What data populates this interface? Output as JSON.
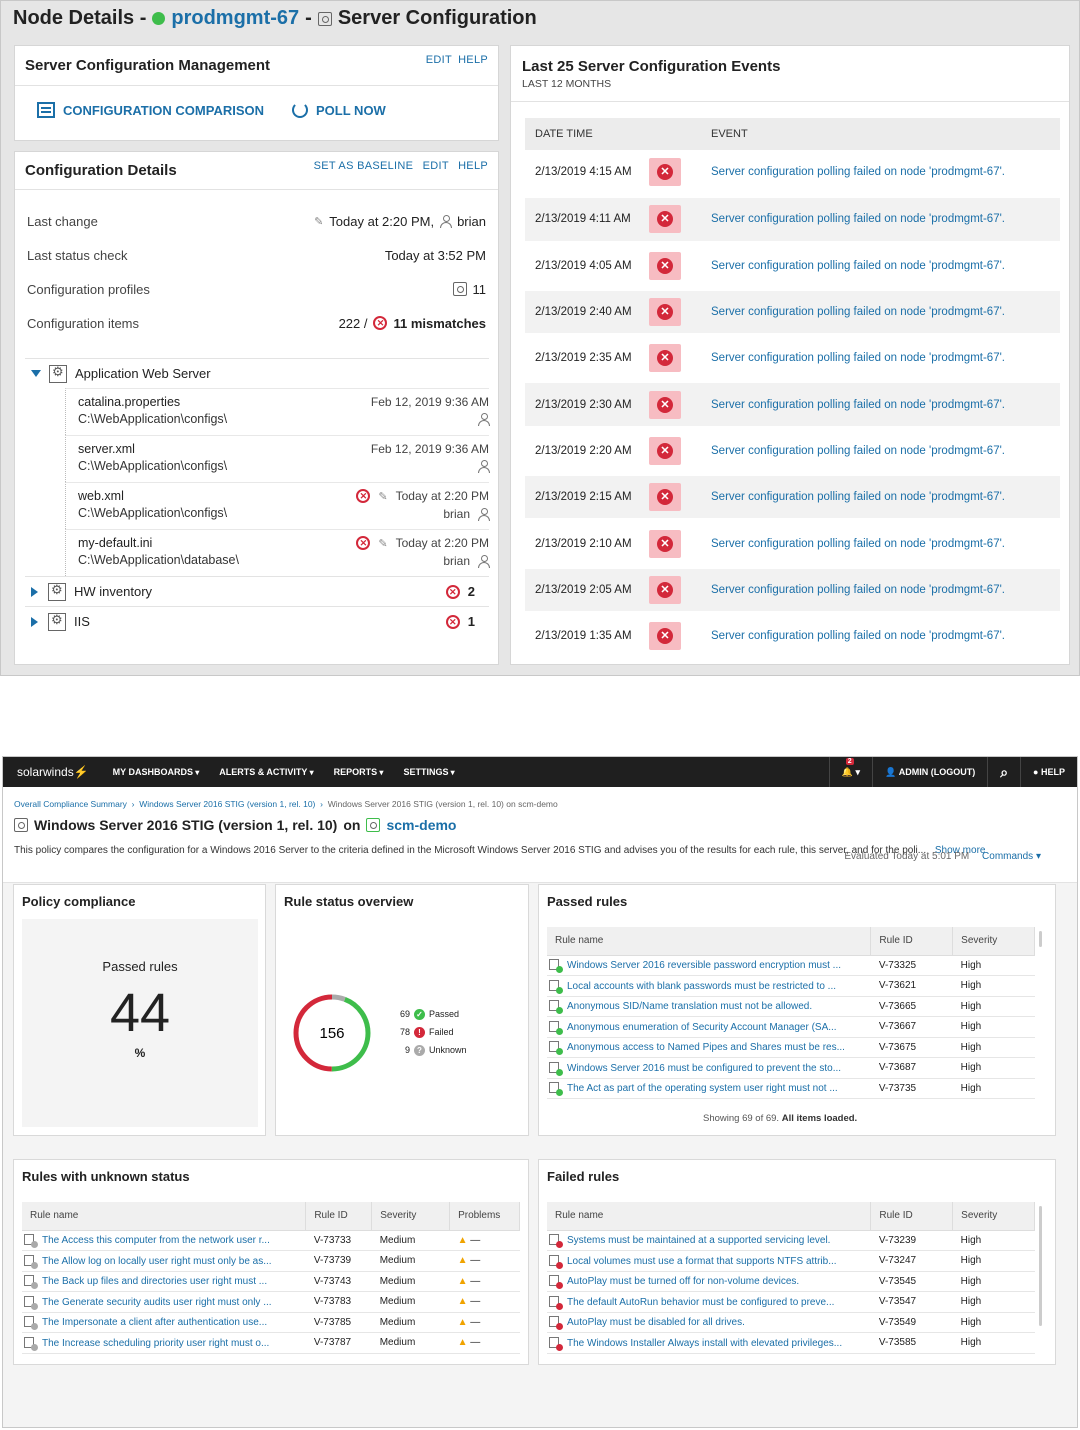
{
  "top": {
    "title_prefix": "Node Details -",
    "node_name": "prodmgmt-67",
    "title_suffix": "Server Configuration",
    "scm": {
      "title": "Server Configuration Management",
      "edit": "EDIT",
      "help": "HELP",
      "comparison": "CONFIGURATION COMPARISON",
      "poll": "POLL NOW"
    },
    "details": {
      "title": "Configuration Details",
      "set_baseline": "SET AS BASELINE",
      "edit": "EDIT",
      "help": "HELP",
      "last_change_label": "Last change",
      "last_change_value": "Today at 2:20 PM,",
      "last_change_user": "brian",
      "status_check_label": "Last status check",
      "status_check_value": "Today at 3:52 PM",
      "profiles_label": "Configuration profiles",
      "profiles_value": "11",
      "items_label": "Configuration items",
      "items_count": "222 /",
      "items_mismatch": "11 mismatches",
      "group_web": "Application Web Server",
      "files": [
        {
          "name": "catalina.properties",
          "path": "C:\\WebApplication\\configs\\",
          "date": "Feb 12, 2019 9:36 AM",
          "user": ""
        },
        {
          "name": "server.xml",
          "path": "C:\\WebApplication\\configs\\",
          "date": "Feb 12, 2019 9:36 AM",
          "user": ""
        },
        {
          "name": "web.xml",
          "path": "C:\\WebApplication\\configs\\",
          "date": "Today at 2:20 PM",
          "user": "brian"
        },
        {
          "name": "my-default.ini",
          "path": "C:\\WebApplication\\database\\",
          "date": "Today at 2:20 PM",
          "user": "brian"
        }
      ],
      "group_hw": "HW inventory",
      "group_hw_count": "2",
      "group_iis": "IIS",
      "group_iis_count": "1"
    },
    "events": {
      "title": "Last 25 Server Configuration Events",
      "subtitle": "LAST 12 MONTHS",
      "col_date": "DATE TIME",
      "col_event": "EVENT",
      "rows": [
        {
          "date": "2/13/2019 4:15 AM",
          "event": "Server configuration polling failed on node 'prodmgmt-67'."
        },
        {
          "date": "2/13/2019 4:11 AM",
          "event": "Server configuration polling failed on node 'prodmgmt-67'."
        },
        {
          "date": "2/13/2019 4:05 AM",
          "event": "Server configuration polling failed on node 'prodmgmt-67'."
        },
        {
          "date": "2/13/2019 2:40 AM",
          "event": "Server configuration polling failed on node 'prodmgmt-67'."
        },
        {
          "date": "2/13/2019 2:35 AM",
          "event": "Server configuration polling failed on node 'prodmgmt-67'."
        },
        {
          "date": "2/13/2019 2:30 AM",
          "event": "Server configuration polling failed on node 'prodmgmt-67'."
        },
        {
          "date": "2/13/2019 2:20 AM",
          "event": "Server configuration polling failed on node 'prodmgmt-67'."
        },
        {
          "date": "2/13/2019 2:15 AM",
          "event": "Server configuration polling failed on node 'prodmgmt-67'."
        },
        {
          "date": "2/13/2019 2:10 AM",
          "event": "Server configuration polling failed on node 'prodmgmt-67'."
        },
        {
          "date": "2/13/2019 2:05 AM",
          "event": "Server configuration polling failed on node 'prodmgmt-67'."
        },
        {
          "date": "2/13/2019 1:35 AM",
          "event": "Server configuration polling failed on node 'prodmgmt-67'."
        }
      ]
    }
  },
  "bottom": {
    "nav": {
      "logo": "solarwinds",
      "items": [
        "MY DASHBOARDS",
        "ALERTS & ACTIVITY",
        "REPORTS",
        "SETTINGS"
      ],
      "alert_count": "2",
      "user": "ADMIN (LOGOUT)",
      "help": "HELP"
    },
    "breadcrumb": {
      "c1": "Overall Compliance Summary",
      "c2": "Windows Server 2016 STIG (version 1, rel. 10)",
      "c3": "Windows Server 2016 STIG (version 1, rel. 10) on scm-demo"
    },
    "title": "Windows Server 2016 STIG (version 1, rel. 10)",
    "title_on": "on",
    "title_node": "scm-demo",
    "evaluated": "Evaluated Today at 5:01 PM",
    "commands": "Commands",
    "description": "This policy compares the configuration for a Windows 2016 Server to the criteria defined in the Microsoft Windows Server 2016 STIG and advises you of the results for each rule, this server, and for the poli...",
    "show_more": "Show more",
    "policy": {
      "title": "Policy compliance",
      "label": "Passed rules",
      "value": "44",
      "unit": "%"
    },
    "status": {
      "title": "Rule status overview",
      "total": "156",
      "passed": 69,
      "failed": 78,
      "unknown": 9,
      "passed_label": "Passed",
      "failed_label": "Failed",
      "unknown_label": "Unknown",
      "colors": {
        "passed": "#3ebd4b",
        "failed": "#d3283a",
        "unknown": "#aaaaaa"
      }
    },
    "passed_rules": {
      "title": "Passed rules",
      "cols": [
        "Rule name",
        "Rule ID",
        "Severity"
      ],
      "rows": [
        [
          "Windows Server 2016 reversible password encryption must ...",
          "V-73325",
          "High"
        ],
        [
          "Local accounts with blank passwords must be restricted to ...",
          "V-73621",
          "High"
        ],
        [
          "Anonymous SID/Name translation must not be allowed.",
          "V-73665",
          "High"
        ],
        [
          "Anonymous enumeration of Security Account Manager (SA...",
          "V-73667",
          "High"
        ],
        [
          "Anonymous access to Named Pipes and Shares must be res...",
          "V-73675",
          "High"
        ],
        [
          "Windows Server 2016 must be configured to prevent the sto...",
          "V-73687",
          "High"
        ],
        [
          "The Act as part of the operating system user right must not ...",
          "V-73735",
          "High"
        ]
      ],
      "footer_a": "Showing 69 of 69.",
      "footer_b": "All items loaded."
    },
    "unknown_rules": {
      "title": "Rules with unknown status",
      "cols": [
        "Rule name",
        "Rule ID",
        "Severity",
        "Problems"
      ],
      "rows": [
        [
          "The Access this computer from the network user r...",
          "V-73733",
          "Medium",
          "—"
        ],
        [
          "The Allow log on locally user right must only be as...",
          "V-73739",
          "Medium",
          "—"
        ],
        [
          "The Back up files and directories user right must ...",
          "V-73743",
          "Medium",
          "—"
        ],
        [
          "The Generate security audits user right must only ...",
          "V-73783",
          "Medium",
          "—"
        ],
        [
          "The Impersonate a client after authentication use...",
          "V-73785",
          "Medium",
          "—"
        ],
        [
          "The Increase scheduling priority user right must o...",
          "V-73787",
          "Medium",
          "—"
        ]
      ]
    },
    "failed_rules": {
      "title": "Failed rules",
      "cols": [
        "Rule name",
        "Rule ID",
        "Severity"
      ],
      "rows": [
        [
          "Systems must be maintained at a supported servicing level.",
          "V-73239",
          "High"
        ],
        [
          "Local volumes must use a format that supports NTFS attrib...",
          "V-73247",
          "High"
        ],
        [
          "AutoPlay must be turned off for non-volume devices.",
          "V-73545",
          "High"
        ],
        [
          "The default AutoRun behavior must be configured to preve...",
          "V-73547",
          "High"
        ],
        [
          "AutoPlay must be disabled for all drives.",
          "V-73549",
          "High"
        ],
        [
          "The Windows Installer Always install with elevated privileges...",
          "V-73585",
          "High"
        ]
      ]
    }
  }
}
